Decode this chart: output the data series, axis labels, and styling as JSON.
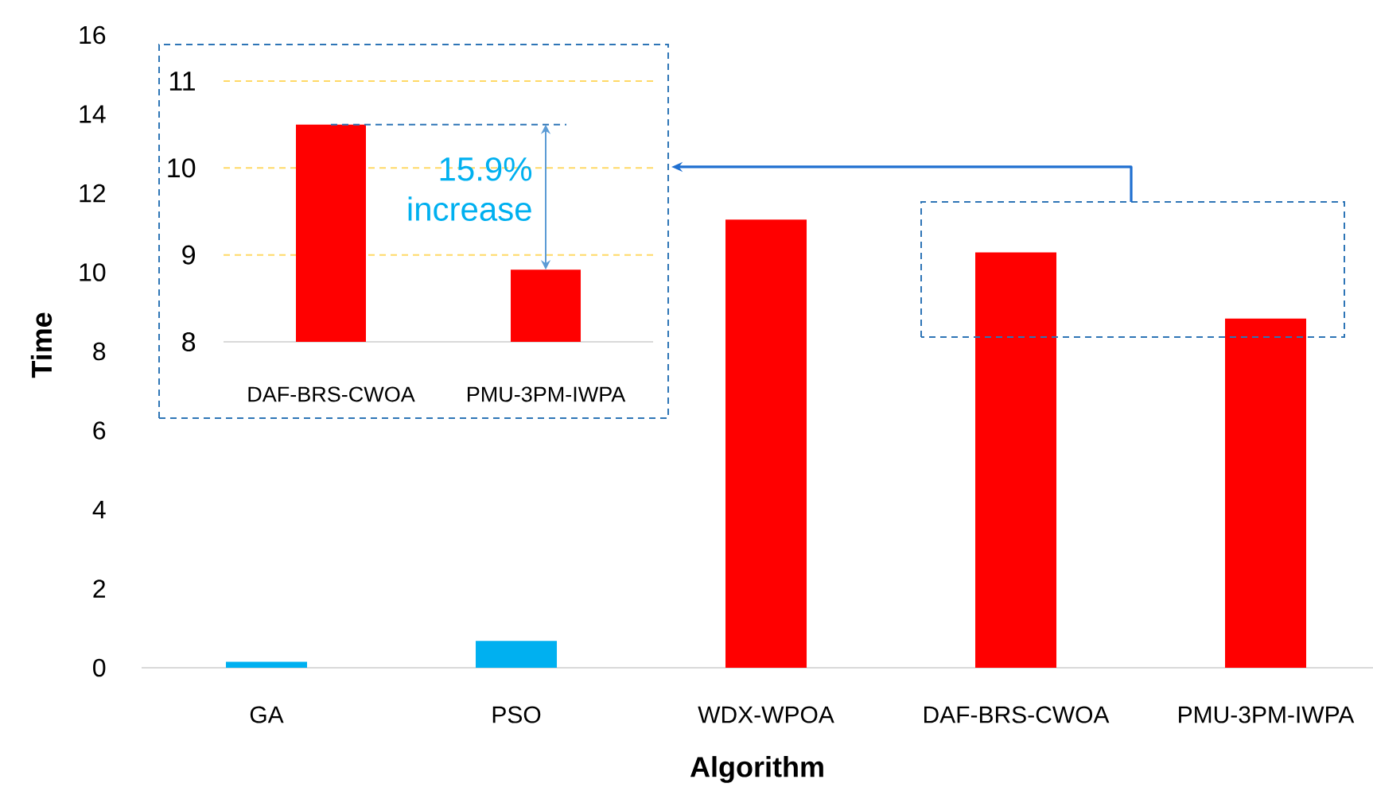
{
  "chart_data": [
    {
      "type": "bar",
      "categories": [
        "GA",
        "PSO",
        "WDX-WPOA",
        "DAF-BRS-CWOA",
        "PMU-3PM-IWPA"
      ],
      "values": [
        0.15,
        0.68,
        11.33,
        10.5,
        8.83
      ],
      "colors": [
        "#00b0f0",
        "#00b0f0",
        "#ff0000",
        "#ff0000",
        "#ff0000"
      ],
      "xlabel": "Algorithm",
      "ylabel": "Time",
      "ylim": [
        0,
        16
      ],
      "yticks": [
        0,
        2,
        4,
        6,
        8,
        10,
        12,
        14,
        16
      ]
    },
    {
      "type": "bar",
      "categories": [
        "DAF-BRS-CWOA",
        "PMU-3PM-IWPA"
      ],
      "values": [
        10.5,
        8.83
      ],
      "colors": [
        "#ff0000",
        "#ff0000"
      ],
      "ylim": [
        8,
        11
      ],
      "yticks": [
        8,
        9,
        10,
        11
      ],
      "grid": "y",
      "ref_lines": [
        {
          "axis": "y",
          "value": 10.5,
          "color": "#2e75b6",
          "line_style": "dashed"
        }
      ],
      "annotations": [
        {
          "text": "15.9% increase",
          "x": "PMU-3PM-IWPA",
          "y": 10.5
        }
      ]
    }
  ]
}
